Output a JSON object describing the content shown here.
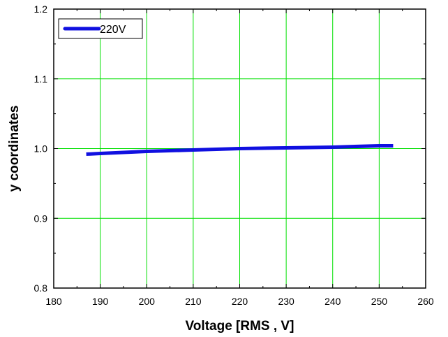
{
  "chart_data": {
    "type": "line",
    "title": "",
    "xlabel": "Voltage [RMS , V]",
    "ylabel": "y coordinates",
    "xlim": [
      180,
      260
    ],
    "ylim": [
      0.8,
      1.2
    ],
    "x_ticks": [
      180,
      190,
      200,
      210,
      220,
      230,
      240,
      250,
      260
    ],
    "x_tick_labels": [
      "180",
      "190",
      "200",
      "210",
      "220",
      "230",
      "240",
      "250",
      "260"
    ],
    "y_ticks": [
      0.8,
      0.9,
      1.0,
      1.1,
      1.2
    ],
    "y_tick_labels": [
      "0.8",
      "0.9",
      "1.0",
      "1.1",
      "1.2"
    ],
    "grid": true,
    "grid_color": "#00e000",
    "legend_position": "top-left",
    "series": [
      {
        "name": "220V",
        "color": "#1010e0",
        "x": [
          187,
          190,
          200,
          210,
          220,
          230,
          240,
          250,
          253
        ],
        "y": [
          0.992,
          0.993,
          0.996,
          0.998,
          1.0,
          1.001,
          1.002,
          1.004,
          1.004
        ]
      }
    ]
  }
}
